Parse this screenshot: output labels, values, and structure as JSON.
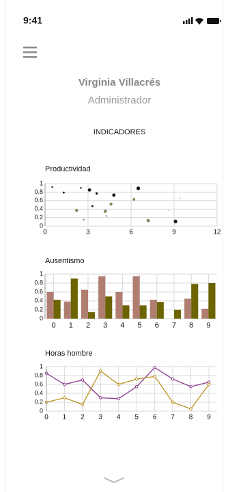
{
  "status": {
    "time": "9:41"
  },
  "profile": {
    "name": "Virginia Villacrés",
    "role": "Administrador"
  },
  "section_title": "INDICADORES",
  "chart_data": [
    {
      "type": "scatter",
      "title": "Productividad",
      "xlim": [
        0,
        12
      ],
      "xticks": [
        0,
        3,
        6,
        9,
        12
      ],
      "ylim": [
        0,
        1
      ],
      "yticks": [
        0,
        0.2,
        0.4,
        0.6,
        0.8,
        1
      ],
      "grid": true,
      "series": [
        {
          "color": "#111111",
          "x": [
            0.5,
            1.3,
            2.5,
            3.1,
            3.6,
            3.3,
            4.8,
            6.5,
            9.1,
            4.3
          ],
          "values": [
            0.92,
            0.79,
            0.9,
            0.85,
            0.77,
            0.47,
            0.73,
            0.89,
            0.11,
            0.24
          ],
          "sizes": [
            1,
            1.2,
            1,
            2,
            1.4,
            1.2,
            2,
            2.2,
            2.2,
            0.6
          ]
        },
        {
          "color": "#7d8a55",
          "x": [
            2.2,
            2.7,
            4.2,
            4.6,
            6.2,
            7.2,
            8.6,
            9.4
          ],
          "values": [
            0.37,
            0.15,
            0.35,
            0.52,
            0.63,
            0.13,
            0.37,
            0.66
          ],
          "sizes": [
            1.8,
            1,
            2,
            1.8,
            1.6,
            2,
            0.5,
            0.6
          ]
        }
      ]
    },
    {
      "type": "bar",
      "title": "Ausentismo",
      "categories": [
        "0",
        "1",
        "2",
        "3",
        "4",
        "5",
        "6",
        "7",
        "8",
        "9"
      ],
      "ylim": [
        0,
        1
      ],
      "yticks": [
        0,
        0.2,
        0.4,
        0.6,
        0.8,
        1
      ],
      "grid": true,
      "series": [
        {
          "color": "#b07e70",
          "values": [
            0.6,
            0.38,
            0.65,
            0.95,
            0.6,
            0.95,
            0.42,
            0,
            0.45,
            0.22
          ]
        },
        {
          "color": "#6b6400",
          "values": [
            0.42,
            0.9,
            0.15,
            0.5,
            0.3,
            0.3,
            0.37,
            0.2,
            0.78,
            0.8
          ]
        }
      ]
    },
    {
      "type": "line",
      "title": "Horas hombre",
      "x": [
        0,
        1,
        2,
        3,
        4,
        5,
        6,
        7,
        8,
        9
      ],
      "xlim": [
        0,
        9
      ],
      "xticks": [
        0,
        1,
        2,
        3,
        4,
        5,
        6,
        7,
        8,
        9
      ],
      "ylim": [
        0,
        1
      ],
      "yticks": [
        0,
        0.2,
        0.4,
        0.6,
        0.8,
        1
      ],
      "grid": true,
      "series": [
        {
          "color": "#8a3a8a",
          "values": [
            0.85,
            0.6,
            0.7,
            0.3,
            0.28,
            0.55,
            0.98,
            0.72,
            0.55,
            0.65
          ]
        },
        {
          "color": "#b8901e",
          "values": [
            0.2,
            0.3,
            0.15,
            0.9,
            0.6,
            0.72,
            0.78,
            0.2,
            0.05,
            0.6
          ]
        }
      ]
    }
  ]
}
